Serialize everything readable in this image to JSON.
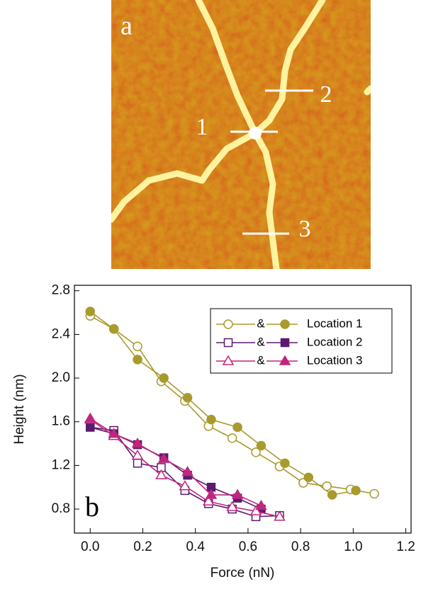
{
  "image_panel": {
    "label": "a",
    "markers": [
      "1",
      "2",
      "3"
    ]
  },
  "chart_data": {
    "type": "line",
    "panel_label": "b",
    "x_label": "Force (nN)",
    "y_label": "Height (nm)",
    "xlim": [
      -0.06,
      1.22
    ],
    "ylim": [
      0.58,
      2.85
    ],
    "xticks": [
      {
        "value": 0,
        "label": "0.0"
      },
      0.2,
      0.4,
      0.6,
      0.8,
      {
        "value": 1,
        "label": "1.0"
      },
      1.2
    ],
    "yticks": [
      0.8,
      1.2,
      1.6,
      {
        "value": 2,
        "label": "2.0"
      },
      2.4,
      2.8
    ],
    "legend_joiner": "&",
    "series": [
      {
        "name": "Location 1",
        "color": "#a89a2c",
        "marker": "circle",
        "open": {
          "x": [
            0,
            0.09,
            0.18,
            0.27,
            0.36,
            0.45,
            0.54,
            0.63,
            0.72,
            0.81,
            0.9,
            0.99,
            1.08
          ],
          "values": [
            2.57,
            2.45,
            2.29,
            1.97,
            1.79,
            1.56,
            1.45,
            1.32,
            1.19,
            1.04,
            1.01,
            0.98,
            0.94
          ]
        },
        "filled": {
          "x": [
            0,
            0.09,
            0.18,
            0.28,
            0.37,
            0.46,
            0.56,
            0.65,
            0.74,
            0.83,
            0.92,
            1.01
          ],
          "values": [
            2.61,
            2.45,
            2.17,
            2.0,
            1.82,
            1.62,
            1.55,
            1.38,
            1.22,
            1.09,
            0.93,
            0.97
          ]
        }
      },
      {
        "name": "Location 2",
        "color": "#5a1a6e",
        "marker": "square",
        "open": {
          "x": [
            0,
            0.09,
            0.18,
            0.27,
            0.36,
            0.45,
            0.54,
            0.63,
            0.72
          ],
          "values": [
            1.55,
            1.52,
            1.22,
            1.18,
            0.97,
            0.85,
            0.8,
            0.73,
            0.74
          ]
        },
        "filled": {
          "x": [
            0,
            0.09,
            0.18,
            0.28,
            0.37,
            0.46,
            0.56,
            0.65
          ],
          "values": [
            1.55,
            1.49,
            1.39,
            1.27,
            1.11,
            1.0,
            0.9,
            0.8
          ]
        }
      },
      {
        "name": "Location 3",
        "color": "#c0267e",
        "marker": "triangle",
        "open": {
          "x": [
            0,
            0.09,
            0.18,
            0.27,
            0.36,
            0.45,
            0.54,
            0.63,
            0.72
          ],
          "values": [
            1.62,
            1.47,
            1.29,
            1.11,
            1.01,
            0.87,
            0.82,
            0.78,
            0.73
          ]
        },
        "filled": {
          "x": [
            0,
            0.09,
            0.18,
            0.28,
            0.37,
            0.46,
            0.56,
            0.65
          ],
          "values": [
            1.63,
            1.49,
            1.4,
            1.26,
            1.14,
            0.93,
            0.93,
            0.83
          ]
        }
      }
    ]
  }
}
